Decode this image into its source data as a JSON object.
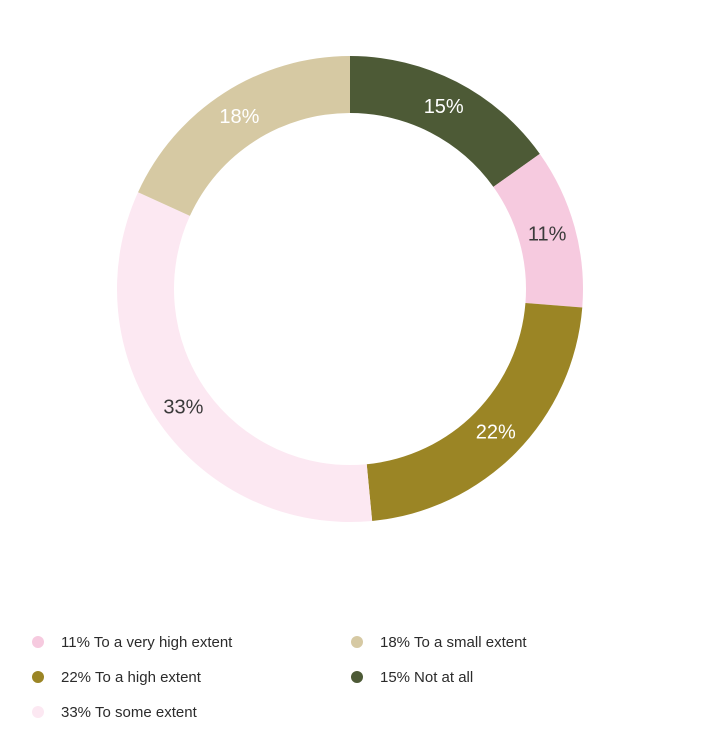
{
  "chart_data": {
    "type": "pie",
    "variant": "donut",
    "start": "top, clockwise",
    "slices": [
      {
        "label": "Not at all",
        "value": 15,
        "value_label": "15%",
        "color": "#4d5a36",
        "text_color": "#ffffff"
      },
      {
        "label": "To a very high extent",
        "value": 11,
        "value_label": "11%",
        "color": "#f6cadf",
        "text_color": "#3a3a3a"
      },
      {
        "label": "To a high extent",
        "value": 22,
        "value_label": "22%",
        "color": "#9b8525",
        "text_color": "#ffffff"
      },
      {
        "label": "To some extent",
        "value": 33,
        "value_label": "33%",
        "color": "#fce8f2",
        "text_color": "#3a3a3a"
      },
      {
        "label": "To a small extent",
        "value": 18,
        "value_label": "18%",
        "color": "#d6c9a3",
        "text_color": "#ffffff"
      }
    ],
    "legend_placement": "bottom",
    "legend": [
      {
        "pct": "11%",
        "label": "To a very high extent",
        "color": "#f6cadf"
      },
      {
        "pct": "18%",
        "label": "To a small extent",
        "color": "#d6c9a3"
      },
      {
        "pct": "22%",
        "label": "To a high extent",
        "color": "#9b8525"
      },
      {
        "pct": "15%",
        "label": "Not at all",
        "color": "#4d5a36"
      },
      {
        "pct": "33%",
        "label": "To some extent",
        "color": "#fce8f2"
      }
    ]
  }
}
